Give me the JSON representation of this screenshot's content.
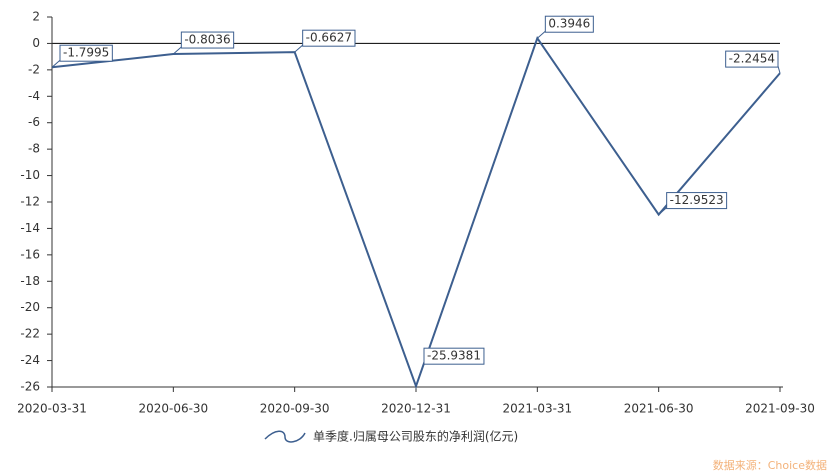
{
  "chart_data": {
    "type": "line",
    "categories": [
      "2020-03-31",
      "2020-06-30",
      "2020-09-30",
      "2020-12-31",
      "2021-03-31",
      "2021-06-30",
      "2021-09-30"
    ],
    "series": [
      {
        "name": "单季度.归属母公司股东的净利润(亿元)",
        "color": "#3d5f8f",
        "values": [
          -1.7995,
          -0.8036,
          -0.6627,
          -25.9381,
          0.3946,
          -12.9523,
          -2.2454
        ]
      }
    ],
    "ylim": [
      -26,
      2
    ],
    "yticks": [
      2,
      0,
      -2,
      -4,
      -6,
      -8,
      -10,
      -12,
      -14,
      -16,
      -18,
      -20,
      -22,
      -24,
      -26
    ],
    "legend": "bottom",
    "source": "数据来源：Choice数据"
  }
}
